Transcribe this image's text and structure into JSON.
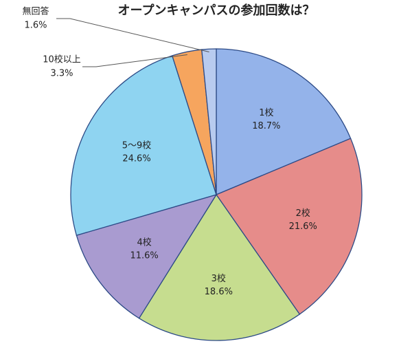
{
  "chart_data": {
    "type": "pie",
    "title": "オープンキャンパスの参加回数は？",
    "categories": [
      "1校",
      "2校",
      "3校",
      "4校",
      "5〜9校",
      "10校以上",
      "無回答"
    ],
    "values": [
      18.7,
      21.6,
      18.6,
      11.6,
      24.6,
      3.3,
      1.6
    ],
    "value_labels": [
      "18.7%",
      "21.6%",
      "18.6%",
      "11.6%",
      "24.6%",
      "3.3%",
      "1.6%"
    ],
    "colors": [
      "#94b3ea",
      "#e68c8a",
      "#c6dd8f",
      "#a99bd0",
      "#8fd4f1",
      "#f6a55e",
      "#b8cbef"
    ]
  }
}
